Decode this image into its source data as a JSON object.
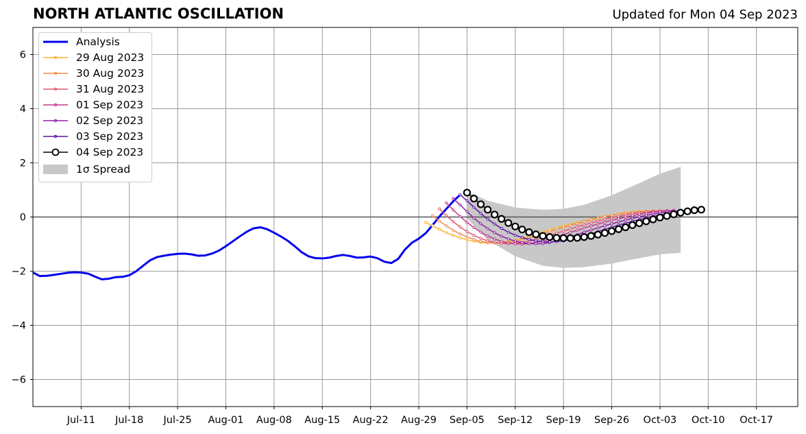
{
  "title": "NORTH ATLANTIC OSCILLATION",
  "updated": "Updated for Mon 04 Sep 2023",
  "colors": {
    "analysis": "#0000ee",
    "spread": "#c8c8c8",
    "grid": "#999999",
    "forecast_04": "#000000",
    "palette": [
      "#f9b233",
      "#f08a4b",
      "#e0566e",
      "#c0378d",
      "#8e1ea6",
      "#5b10a0"
    ]
  },
  "legend": [
    {
      "label": "Analysis"
    },
    {
      "label": "29 Aug 2023"
    },
    {
      "label": "30 Aug 2023"
    },
    {
      "label": "31 Aug 2023"
    },
    {
      "label": "01 Sep 2023"
    },
    {
      "label": "02 Sep 2023"
    },
    {
      "label": "03 Sep 2023"
    },
    {
      "label": "04 Sep 2023"
    },
    {
      "label": "1σ Spread"
    }
  ],
  "chart_data": {
    "type": "line",
    "title": "NORTH ATLANTIC OSCILLATION",
    "subtitle": "Updated for Mon 04 Sep 2023",
    "x_axis": {
      "type": "date",
      "range": [
        "2023-07-04",
        "2023-10-23"
      ],
      "ticks": [
        "2023-07-11",
        "2023-07-18",
        "2023-07-25",
        "2023-08-01",
        "2023-08-08",
        "2023-08-15",
        "2023-08-22",
        "2023-08-29",
        "2023-09-05",
        "2023-09-12",
        "2023-09-19",
        "2023-09-26",
        "2023-10-03",
        "2023-10-10",
        "2023-10-17"
      ],
      "tick_labels": [
        "Jul-11",
        "Jul-18",
        "Jul-25",
        "Aug-01",
        "Aug-08",
        "Aug-15",
        "Aug-22",
        "Aug-29",
        "Sep-05",
        "Sep-12",
        "Sep-19",
        "Sep-26",
        "Oct-03",
        "Oct-10",
        "Oct-17"
      ]
    },
    "y_axis": {
      "range": [
        -7,
        7
      ],
      "ticks": [
        -6,
        -4,
        -2,
        0,
        2,
        4,
        6
      ],
      "tick_labels": [
        "−6",
        "−4",
        "−2",
        "0",
        "2",
        "4",
        "6"
      ]
    },
    "grid": true,
    "legend_position": "top-left",
    "analysis": {
      "name": "Analysis",
      "x": [
        "2023-07-04",
        "2023-07-05",
        "2023-07-06",
        "2023-07-07",
        "2023-07-08",
        "2023-07-09",
        "2023-07-10",
        "2023-07-11",
        "2023-07-12",
        "2023-07-13",
        "2023-07-14",
        "2023-07-15",
        "2023-07-16",
        "2023-07-17",
        "2023-07-18",
        "2023-07-19",
        "2023-07-20",
        "2023-07-21",
        "2023-07-22",
        "2023-07-23",
        "2023-07-24",
        "2023-07-25",
        "2023-07-26",
        "2023-07-27",
        "2023-07-28",
        "2023-07-29",
        "2023-07-30",
        "2023-07-31",
        "2023-08-01",
        "2023-08-02",
        "2023-08-03",
        "2023-08-04",
        "2023-08-05",
        "2023-08-06",
        "2023-08-07",
        "2023-08-08",
        "2023-08-09",
        "2023-08-10",
        "2023-08-11",
        "2023-08-12",
        "2023-08-13",
        "2023-08-14",
        "2023-08-15",
        "2023-08-16",
        "2023-08-17",
        "2023-08-18",
        "2023-08-19",
        "2023-08-20",
        "2023-08-21",
        "2023-08-22",
        "2023-08-23",
        "2023-08-24",
        "2023-08-25",
        "2023-08-26",
        "2023-08-27",
        "2023-08-28",
        "2023-08-29",
        "2023-08-30",
        "2023-08-31",
        "2023-09-01",
        "2023-09-02",
        "2023-09-03",
        "2023-09-04"
      ],
      "values": [
        -2.05,
        -2.18,
        -2.17,
        -2.14,
        -2.1,
        -2.06,
        -2.04,
        -2.05,
        -2.09,
        -2.2,
        -2.3,
        -2.28,
        -2.22,
        -2.21,
        -2.15,
        -2.0,
        -1.8,
        -1.6,
        -1.48,
        -1.43,
        -1.39,
        -1.36,
        -1.35,
        -1.38,
        -1.43,
        -1.42,
        -1.35,
        -1.24,
        -1.08,
        -0.9,
        -0.72,
        -0.55,
        -0.42,
        -0.38,
        -0.45,
        -0.58,
        -0.72,
        -0.88,
        -1.08,
        -1.3,
        -1.45,
        -1.52,
        -1.53,
        -1.5,
        -1.44,
        -1.4,
        -1.44,
        -1.5,
        -1.49,
        -1.46,
        -1.52,
        -1.65,
        -1.7,
        -1.55,
        -1.2,
        -0.95,
        -0.8,
        -0.6,
        -0.3,
        0.02,
        0.3,
        0.58,
        0.82
      ]
    },
    "spread": {
      "name": "1σ Spread",
      "x": [
        "2023-09-05",
        "2023-09-08",
        "2023-09-12",
        "2023-09-16",
        "2023-09-19",
        "2023-09-22",
        "2023-09-26",
        "2023-09-30",
        "2023-10-03",
        "2023-10-06"
      ],
      "upper": [
        0.95,
        0.6,
        0.35,
        0.27,
        0.3,
        0.45,
        0.8,
        1.25,
        1.6,
        1.85
      ],
      "lower": [
        -0.05,
        -0.85,
        -1.45,
        -1.8,
        -1.88,
        -1.85,
        -1.72,
        -1.52,
        -1.38,
        -1.32
      ]
    },
    "series": [
      {
        "name": "29 Aug 2023",
        "start": "2023-08-30",
        "values": [
          -0.2,
          -0.32,
          -0.46,
          -0.58,
          -0.68,
          -0.77,
          -0.84,
          -0.9,
          -0.94,
          -0.96,
          -0.96,
          -0.94,
          -0.9,
          -0.85,
          -0.78,
          -0.7,
          -0.62,
          -0.55,
          -0.47,
          -0.4,
          -0.33,
          -0.27,
          -0.21,
          -0.15,
          -0.09,
          -0.03,
          0.02,
          0.07,
          0.12,
          0.16,
          0.19,
          0.21,
          0.22,
          0.23
        ]
      },
      {
        "name": "30 Aug 2023",
        "start": "2023-08-31",
        "values": [
          0.05,
          -0.15,
          -0.33,
          -0.49,
          -0.63,
          -0.74,
          -0.83,
          -0.9,
          -0.94,
          -0.96,
          -0.96,
          -0.94,
          -0.9,
          -0.85,
          -0.78,
          -0.7,
          -0.62,
          -0.54,
          -0.46,
          -0.38,
          -0.31,
          -0.24,
          -0.17,
          -0.11,
          -0.05,
          0.01,
          0.06,
          0.1,
          0.14,
          0.17,
          0.19,
          0.21,
          0.22,
          0.22
        ]
      },
      {
        "name": "31 Aug 2023",
        "start": "2023-09-01",
        "values": [
          0.3,
          0.05,
          -0.17,
          -0.37,
          -0.54,
          -0.68,
          -0.79,
          -0.88,
          -0.94,
          -0.97,
          -0.98,
          -0.97,
          -0.94,
          -0.89,
          -0.83,
          -0.76,
          -0.68,
          -0.6,
          -0.52,
          -0.44,
          -0.36,
          -0.29,
          -0.22,
          -0.15,
          -0.09,
          -0.03,
          0.03,
          0.08,
          0.12,
          0.16,
          0.19,
          0.21,
          0.23,
          0.24
        ]
      },
      {
        "name": "01 Sep 2023",
        "start": "2023-09-02",
        "values": [
          0.52,
          0.26,
          0.02,
          -0.2,
          -0.39,
          -0.56,
          -0.7,
          -0.81,
          -0.9,
          -0.96,
          -0.99,
          -1.0,
          -0.98,
          -0.94,
          -0.88,
          -0.81,
          -0.73,
          -0.65,
          -0.57,
          -0.49,
          -0.41,
          -0.33,
          -0.26,
          -0.19,
          -0.12,
          -0.06,
          0.0,
          0.05,
          0.1,
          0.14,
          0.18,
          0.21,
          0.23,
          0.25
        ]
      },
      {
        "name": "02 Sep 2023",
        "start": "2023-09-03",
        "values": [
          0.68,
          0.45,
          0.2,
          -0.04,
          -0.25,
          -0.43,
          -0.58,
          -0.71,
          -0.81,
          -0.89,
          -0.95,
          -0.98,
          -0.99,
          -0.98,
          -0.94,
          -0.88,
          -0.81,
          -0.73,
          -0.65,
          -0.56,
          -0.48,
          -0.4,
          -0.32,
          -0.25,
          -0.18,
          -0.11,
          -0.05,
          0.01,
          0.06,
          0.11,
          0.15,
          0.19,
          0.22,
          0.24
        ]
      },
      {
        "name": "03 Sep 2023",
        "start": "2023-09-04",
        "values": [
          0.82,
          0.6,
          0.36,
          0.13,
          -0.08,
          -0.26,
          -0.42,
          -0.56,
          -0.67,
          -0.76,
          -0.83,
          -0.88,
          -0.91,
          -0.92,
          -0.91,
          -0.88,
          -0.83,
          -0.77,
          -0.7,
          -0.62,
          -0.54,
          -0.46,
          -0.38,
          -0.3,
          -0.23,
          -0.16,
          -0.1,
          -0.04,
          0.02,
          0.07,
          0.12,
          0.16,
          0.2,
          0.23
        ]
      },
      {
        "name": "04 Sep 2023",
        "start": "2023-09-05",
        "values": [
          0.9,
          0.68,
          0.47,
          0.27,
          0.09,
          -0.07,
          -0.22,
          -0.35,
          -0.46,
          -0.56,
          -0.64,
          -0.7,
          -0.74,
          -0.77,
          -0.78,
          -0.78,
          -0.77,
          -0.74,
          -0.7,
          -0.65,
          -0.59,
          -0.52,
          -0.45,
          -0.38,
          -0.3,
          -0.23,
          -0.16,
          -0.09,
          -0.02,
          0.04,
          0.1,
          0.16,
          0.21,
          0.25,
          0.27
        ]
      }
    ]
  }
}
